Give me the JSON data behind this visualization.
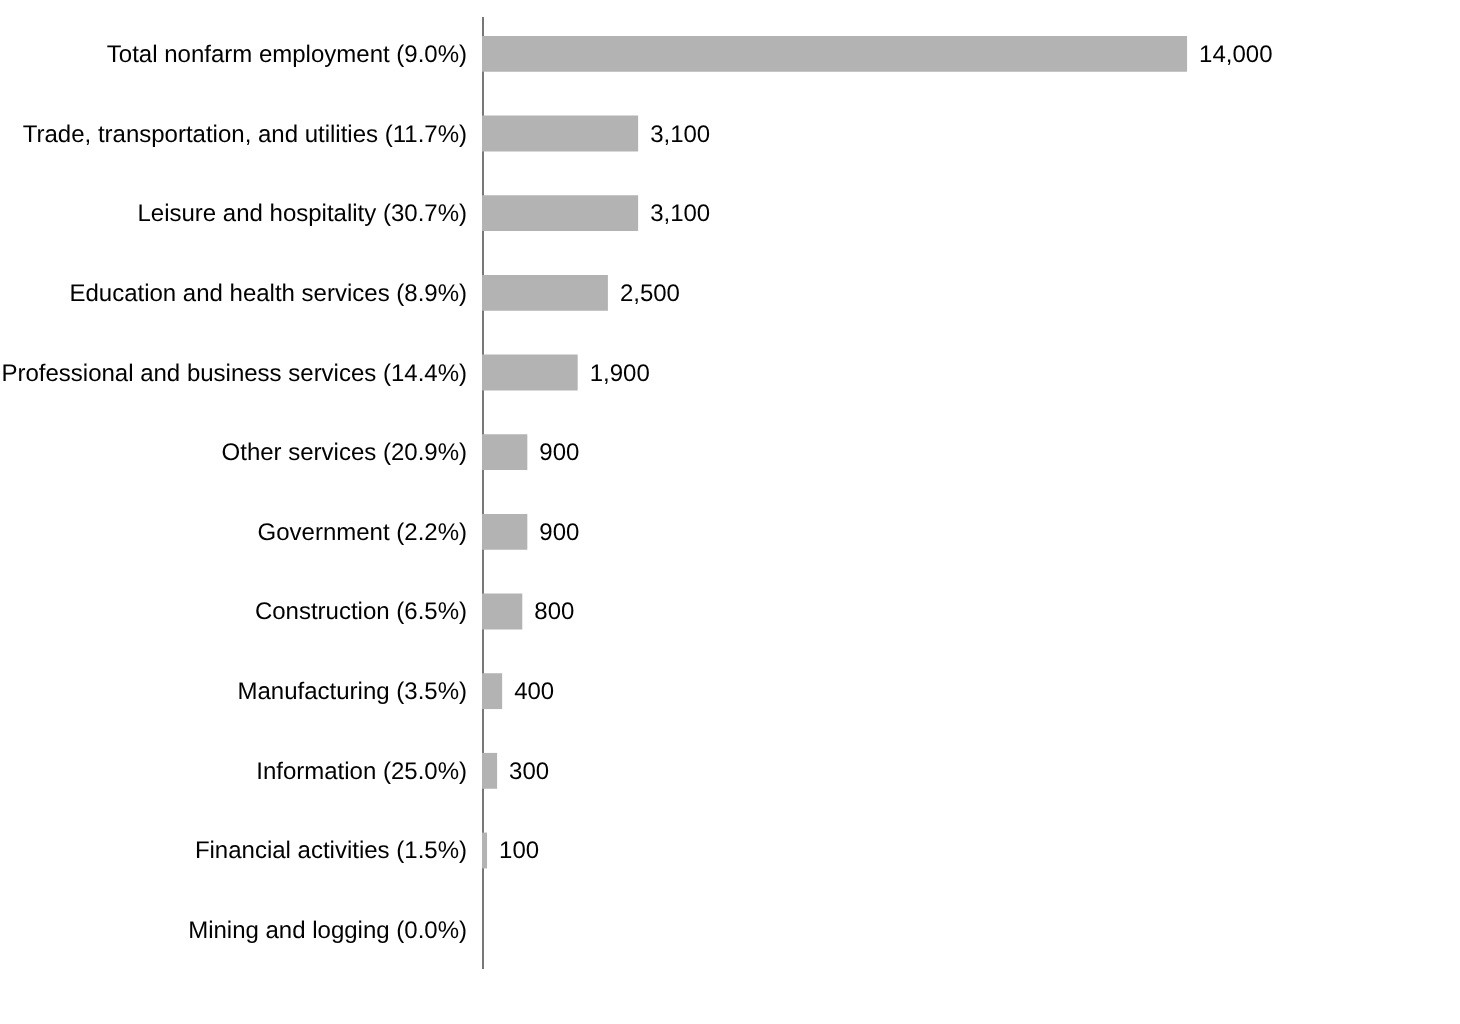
{
  "chart_data": {
    "type": "bar",
    "orientation": "horizontal",
    "categories": [
      "Total nonfarm employment (9.0%)",
      "Trade, transportation, and utilities (11.7%)",
      "Leisure and hospitality (30.7%)",
      "Education and health services (8.9%)",
      "Professional and business services (14.4%)",
      "Other services (20.9%)",
      "Government (2.2%)",
      "Construction (6.5%)",
      "Manufacturing (3.5%)",
      "Information (25.0%)",
      "Financial activities (1.5%)",
      "Mining and logging (0.0%)"
    ],
    "values": [
      14000,
      3100,
      3100,
      2500,
      1900,
      900,
      900,
      800,
      400,
      300,
      100,
      0
    ],
    "value_labels": [
      "14,000",
      "3,100",
      "3,100",
      "2,500",
      "1,900",
      "900",
      "900",
      "800",
      "400",
      "300",
      "100",
      null
    ],
    "color": "#b3b3b3"
  }
}
